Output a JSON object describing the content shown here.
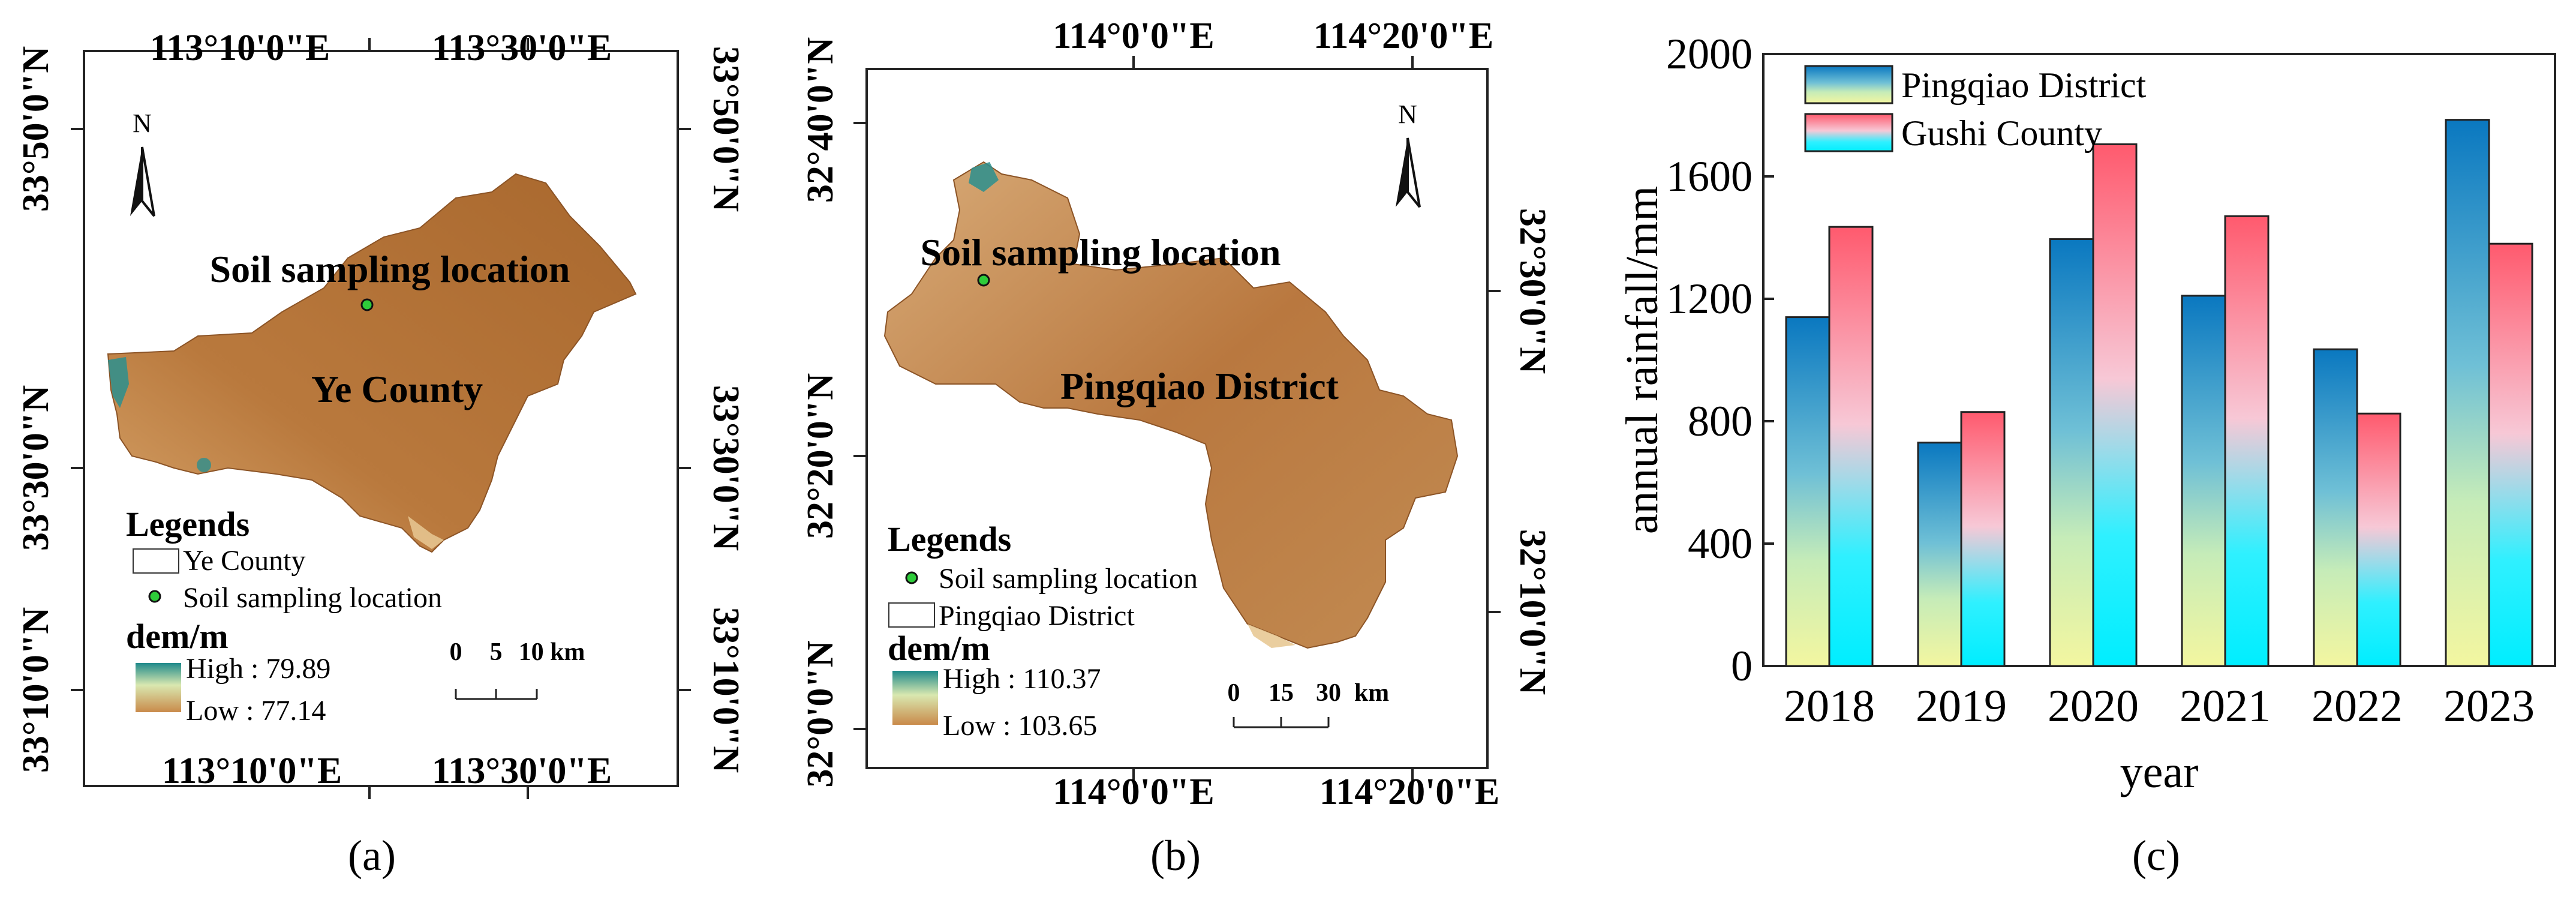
{
  "panels": {
    "a": {
      "caption": "(a)",
      "top_ticks": [
        "113°10'0\"E",
        "113°30'0\"E"
      ],
      "bottom_ticks": [
        "113°10'0\"E",
        "113°30'0\"E"
      ],
      "left_ticks": [
        "33°50'0\"N",
        "33°30'0\"N",
        "33°10'0\"N"
      ],
      "right_ticks": [
        "33°50'0\"N",
        "33°30'0\"N",
        "33°10'0\"N"
      ],
      "north": "N",
      "region_label": "Ye County",
      "site_label": "Soil sampling location",
      "legend": {
        "title": "Legends",
        "boundary": "Ye County",
        "site": "Soil sampling location",
        "dem_title": "dem/m",
        "high": "High : 79.89",
        "low": "Low : 77.14"
      },
      "scale": [
        "0",
        "5",
        "10 km"
      ],
      "colors": {
        "terrain": "#b7763a",
        "high": "#1f8a8a",
        "low": "#c98a4a",
        "site": "#2ecc3a"
      }
    },
    "b": {
      "caption": "(b)",
      "top_ticks": [
        "114°0'0\"E",
        "114°20'0\"E"
      ],
      "bottom_ticks": [
        "114°0'0\"E",
        "114°20'0\"E"
      ],
      "left_ticks": [
        "32°40'0\"N",
        "32°20'0\"N",
        "32°0'0\"N"
      ],
      "right_ticks": [
        "32°30'0\"N",
        "32°10'0\"N"
      ],
      "north": "N",
      "region_label": "Pingqiao District",
      "site_label": "Soil sampling location",
      "legend": {
        "title": "Legends",
        "site": "Soil sampling location",
        "boundary": "Pingqiao District",
        "dem_title": "dem/m",
        "high": "High : 110.37",
        "low": "Low : 103.65"
      },
      "scale": [
        "0",
        "15",
        "30",
        "km"
      ],
      "colors": {
        "terrain": "#b77a44",
        "high": "#1f8a8a",
        "low": "#c98a4a",
        "site": "#2ecc3a"
      }
    }
  },
  "chart_data": {
    "type": "bar",
    "caption": "(c)",
    "categories": [
      "2018",
      "2019",
      "2020",
      "2021",
      "2022",
      "2023"
    ],
    "series": [
      {
        "name": "Pingqiao District",
        "values": [
          1140,
          730,
          1395,
          1210,
          1035,
          1785
        ],
        "gradient": [
          "#0a78c0",
          "#f0f5a0"
        ]
      },
      {
        "name": "Gushi County",
        "values": [
          1435,
          830,
          1705,
          1470,
          825,
          1380
        ],
        "gradient": [
          "#ff5a6e",
          "#00f0ff"
        ]
      }
    ],
    "xlabel": "year",
    "ylabel": "annual rainfall/mm",
    "ylim": [
      0,
      2000
    ],
    "yticks": [
      "0",
      "400",
      "800",
      "1200",
      "1600",
      "2000"
    ],
    "grid": false,
    "legend_position": "top-left"
  }
}
